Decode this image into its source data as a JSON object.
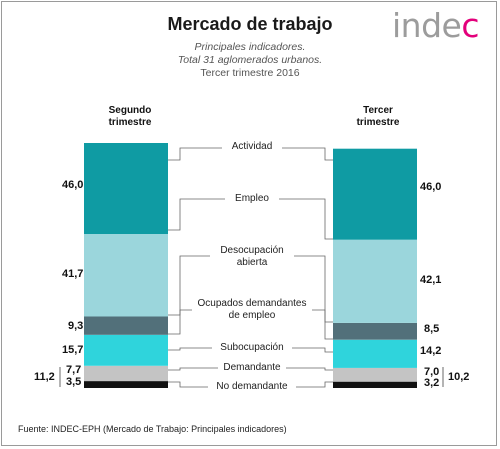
{
  "header": {
    "title": "Mercado de trabajo",
    "subtitle1": "Principales indicadores.",
    "subtitle2": "Total 31 aglomerados urbanos.",
    "subtitle3": "Tercer trimestre 2016",
    "logo_main": "inde",
    "logo_accent": "c"
  },
  "source": "Fuente: INDEC-EPH (Mercado de Trabajo: Principales indicadores)",
  "chart_data": {
    "type": "bar",
    "subtype": "stacked-column-comparison",
    "columns": [
      {
        "label_line1": "Segundo",
        "label_line2": "trimestre",
        "total_label": "11,2"
      },
      {
        "label_line1": "Tercer",
        "label_line2": "trimestre",
        "total_label": "10,2"
      }
    ],
    "segments": [
      {
        "key": "no_demandante",
        "color": "#111111",
        "values": [
          3.5,
          3.2
        ],
        "labels": [
          "3,5",
          "3,2"
        ]
      },
      {
        "key": "demandante",
        "color": "#c4c4c4",
        "values": [
          7.7,
          7.0
        ],
        "labels": [
          "7,7",
          "7,0"
        ]
      },
      {
        "key": "subocupacion",
        "color": "#2fd4dc",
        "values": [
          15.7,
          14.2
        ],
        "labels": [
          "15,7",
          "14,2"
        ]
      },
      {
        "key": "ocupados_demandantes",
        "color": "#52707a",
        "values": [
          9.3,
          8.5
        ],
        "labels": [
          "9,3",
          "8,5"
        ]
      },
      {
        "key": "desocupacion",
        "color": "#9bd6dc",
        "values": [
          41.7,
          42.1
        ],
        "labels": [
          "41,7",
          "42,1"
        ]
      },
      {
        "key": "actividad",
        "color": "#0f9ba3",
        "values": [
          46.0,
          46.0
        ],
        "labels": [
          "46,0",
          "46,0"
        ]
      }
    ],
    "categories": {
      "actividad": "Actividad",
      "empleo": "Empleo",
      "desocupacion_l1": "Desocupación",
      "desocupacion_l2": "abierta",
      "ocupados_l1": "Ocupados demandantes",
      "ocupados_l2": "de empleo",
      "subocupacion": "Subocupación",
      "demandante": "Demandante",
      "no_demandante": "No demandante"
    }
  }
}
